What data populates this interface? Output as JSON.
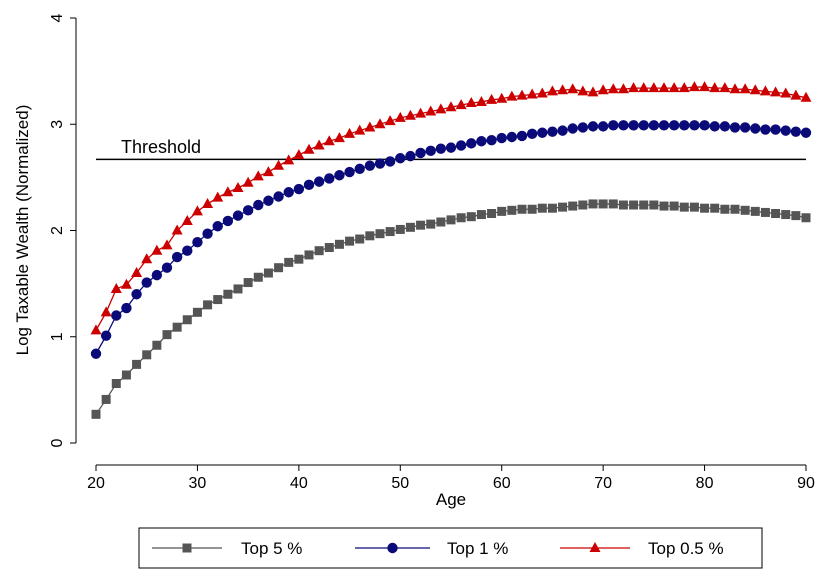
{
  "chart_data": {
    "type": "line",
    "title": "",
    "xlabel": "Age",
    "ylabel": "Log Taxable Wealth (Normalized)",
    "xlim": [
      20,
      90
    ],
    "ylim": [
      0,
      4
    ],
    "xticks": [
      20,
      30,
      40,
      50,
      60,
      70,
      80,
      90
    ],
    "yticks": [
      0,
      1,
      2,
      3,
      4
    ],
    "grid": false,
    "legend_position": "bottom",
    "threshold": {
      "label": "Threshold",
      "y": 2.67,
      "x_start": 20,
      "x_end": 90
    },
    "x": [
      20,
      21,
      22,
      23,
      24,
      25,
      26,
      27,
      28,
      29,
      30,
      31,
      32,
      33,
      34,
      35,
      36,
      37,
      38,
      39,
      40,
      41,
      42,
      43,
      44,
      45,
      46,
      47,
      48,
      49,
      50,
      51,
      52,
      53,
      54,
      55,
      56,
      57,
      58,
      59,
      60,
      61,
      62,
      63,
      64,
      65,
      66,
      67,
      68,
      69,
      70,
      71,
      72,
      73,
      74,
      75,
      76,
      77,
      78,
      79,
      80,
      81,
      82,
      83,
      84,
      85,
      86,
      87,
      88,
      89,
      90
    ],
    "series": [
      {
        "name": "Top 5 %",
        "color": "#555555",
        "marker": "square",
        "values": [
          0.27,
          0.41,
          0.56,
          0.64,
          0.74,
          0.83,
          0.92,
          1.02,
          1.09,
          1.16,
          1.23,
          1.3,
          1.35,
          1.4,
          1.45,
          1.51,
          1.56,
          1.6,
          1.65,
          1.7,
          1.73,
          1.77,
          1.81,
          1.84,
          1.87,
          1.9,
          1.92,
          1.95,
          1.97,
          1.99,
          2.01,
          2.03,
          2.05,
          2.06,
          2.08,
          2.1,
          2.12,
          2.13,
          2.15,
          2.16,
          2.18,
          2.19,
          2.2,
          2.2,
          2.21,
          2.21,
          2.22,
          2.23,
          2.24,
          2.25,
          2.25,
          2.25,
          2.24,
          2.24,
          2.24,
          2.24,
          2.23,
          2.23,
          2.22,
          2.22,
          2.21,
          2.21,
          2.2,
          2.2,
          2.19,
          2.18,
          2.17,
          2.16,
          2.15,
          2.14,
          2.12
        ]
      },
      {
        "name": "Top 1 %",
        "color": "#0a0a78",
        "marker": "circle",
        "values": [
          0.84,
          1.01,
          1.2,
          1.27,
          1.4,
          1.51,
          1.58,
          1.65,
          1.75,
          1.81,
          1.89,
          1.97,
          2.04,
          2.09,
          2.14,
          2.19,
          2.24,
          2.28,
          2.32,
          2.36,
          2.39,
          2.43,
          2.46,
          2.49,
          2.52,
          2.55,
          2.58,
          2.61,
          2.63,
          2.65,
          2.68,
          2.7,
          2.73,
          2.75,
          2.77,
          2.78,
          2.8,
          2.82,
          2.84,
          2.85,
          2.87,
          2.88,
          2.89,
          2.91,
          2.92,
          2.93,
          2.94,
          2.96,
          2.97,
          2.98,
          2.98,
          2.99,
          2.99,
          2.99,
          2.99,
          2.99,
          2.99,
          2.99,
          2.99,
          2.99,
          2.99,
          2.98,
          2.98,
          2.97,
          2.97,
          2.96,
          2.95,
          2.95,
          2.94,
          2.93,
          2.92
        ]
      },
      {
        "name": "Top 0.5 %",
        "color": "#cc0000",
        "marker": "triangle",
        "values": [
          1.06,
          1.23,
          1.45,
          1.49,
          1.6,
          1.73,
          1.81,
          1.86,
          2.0,
          2.09,
          2.18,
          2.25,
          2.31,
          2.36,
          2.4,
          2.45,
          2.51,
          2.55,
          2.61,
          2.66,
          2.71,
          2.76,
          2.8,
          2.84,
          2.87,
          2.91,
          2.94,
          2.97,
          3.0,
          3.03,
          3.06,
          3.08,
          3.1,
          3.12,
          3.14,
          3.16,
          3.18,
          3.2,
          3.21,
          3.23,
          3.24,
          3.26,
          3.27,
          3.28,
          3.29,
          3.31,
          3.32,
          3.33,
          3.31,
          3.3,
          3.32,
          3.33,
          3.33,
          3.34,
          3.34,
          3.34,
          3.34,
          3.34,
          3.34,
          3.35,
          3.35,
          3.34,
          3.34,
          3.33,
          3.33,
          3.32,
          3.31,
          3.3,
          3.29,
          3.27,
          3.25
        ]
      }
    ]
  }
}
